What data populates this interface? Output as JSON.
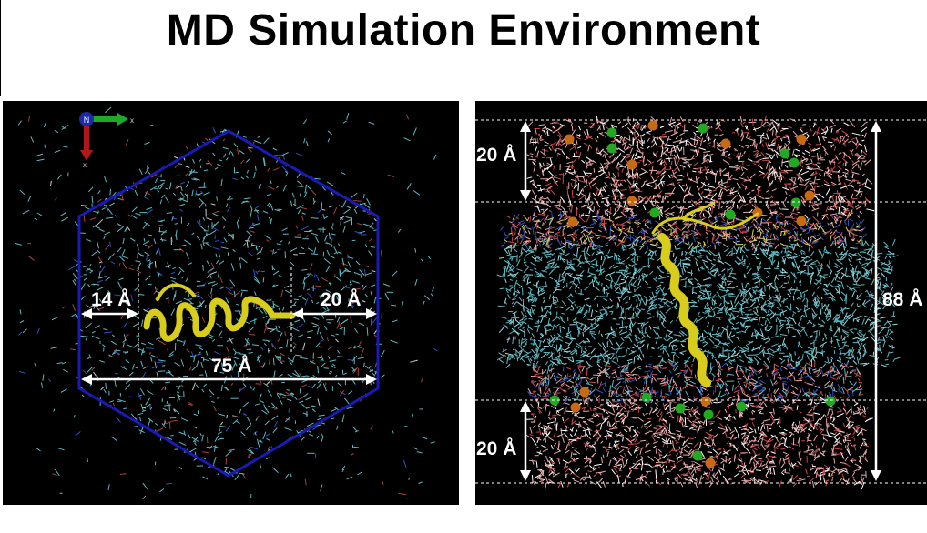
{
  "title": "MD Simulation Environment",
  "left_panel": {
    "axis_labels": {
      "origin": "N",
      "x": "x",
      "y": "x"
    },
    "dimensions": {
      "left_gap": "14 Å",
      "right_gap": "20 Å",
      "width": "75 Å"
    },
    "colors": {
      "box": "#1a1ab8",
      "water": "#5fb8c0",
      "protein": "#d8cc1c",
      "arrow": "#ffffff"
    }
  },
  "right_panel": {
    "dimensions": {
      "top_water": "20 Å",
      "bottom_water": "20 Å",
      "total_height": "88 Å"
    },
    "colors": {
      "water": "#e8a8a8",
      "lipid_tail": "#5fb8c0",
      "headgroup": "#3050c0",
      "protein": "#d8cc1c",
      "ion_orange": "#c86a14",
      "ion_green": "#22a822"
    }
  }
}
